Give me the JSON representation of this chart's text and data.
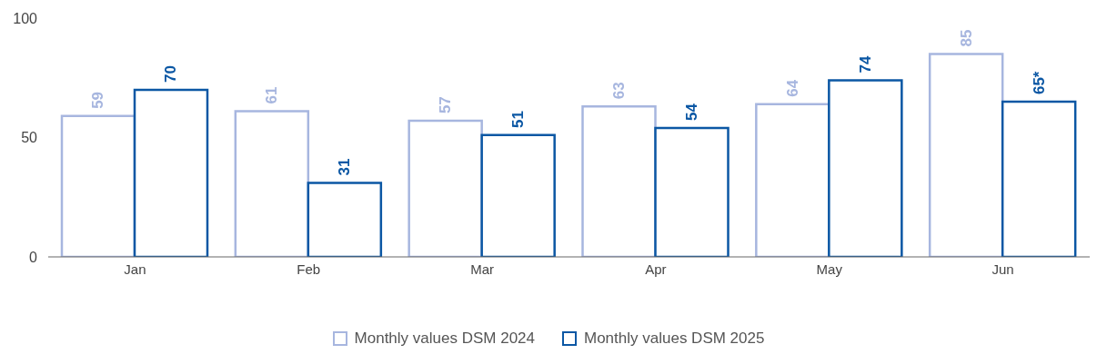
{
  "chart_data": {
    "type": "bar",
    "categories": [
      "Jan",
      "Feb",
      "Mar",
      "Apr",
      "May",
      "Jun"
    ],
    "series": [
      {
        "name": "Monthly values DSM 2024",
        "color": "#a7b6df",
        "values": [
          59,
          61,
          57,
          63,
          64,
          85
        ],
        "value_labels": [
          "59",
          "61",
          "57",
          "63",
          "64",
          "85"
        ]
      },
      {
        "name": "Monthly values DSM 2025",
        "color": "#0b57a4",
        "values": [
          70,
          31,
          51,
          54,
          74,
          65
        ],
        "value_labels": [
          "70",
          "31",
          "51",
          "54",
          "74",
          "65*"
        ]
      }
    ],
    "ylim": [
      0,
      100
    ],
    "yticks": [
      0,
      50,
      100
    ],
    "grid": false,
    "legend": "bottom"
  }
}
